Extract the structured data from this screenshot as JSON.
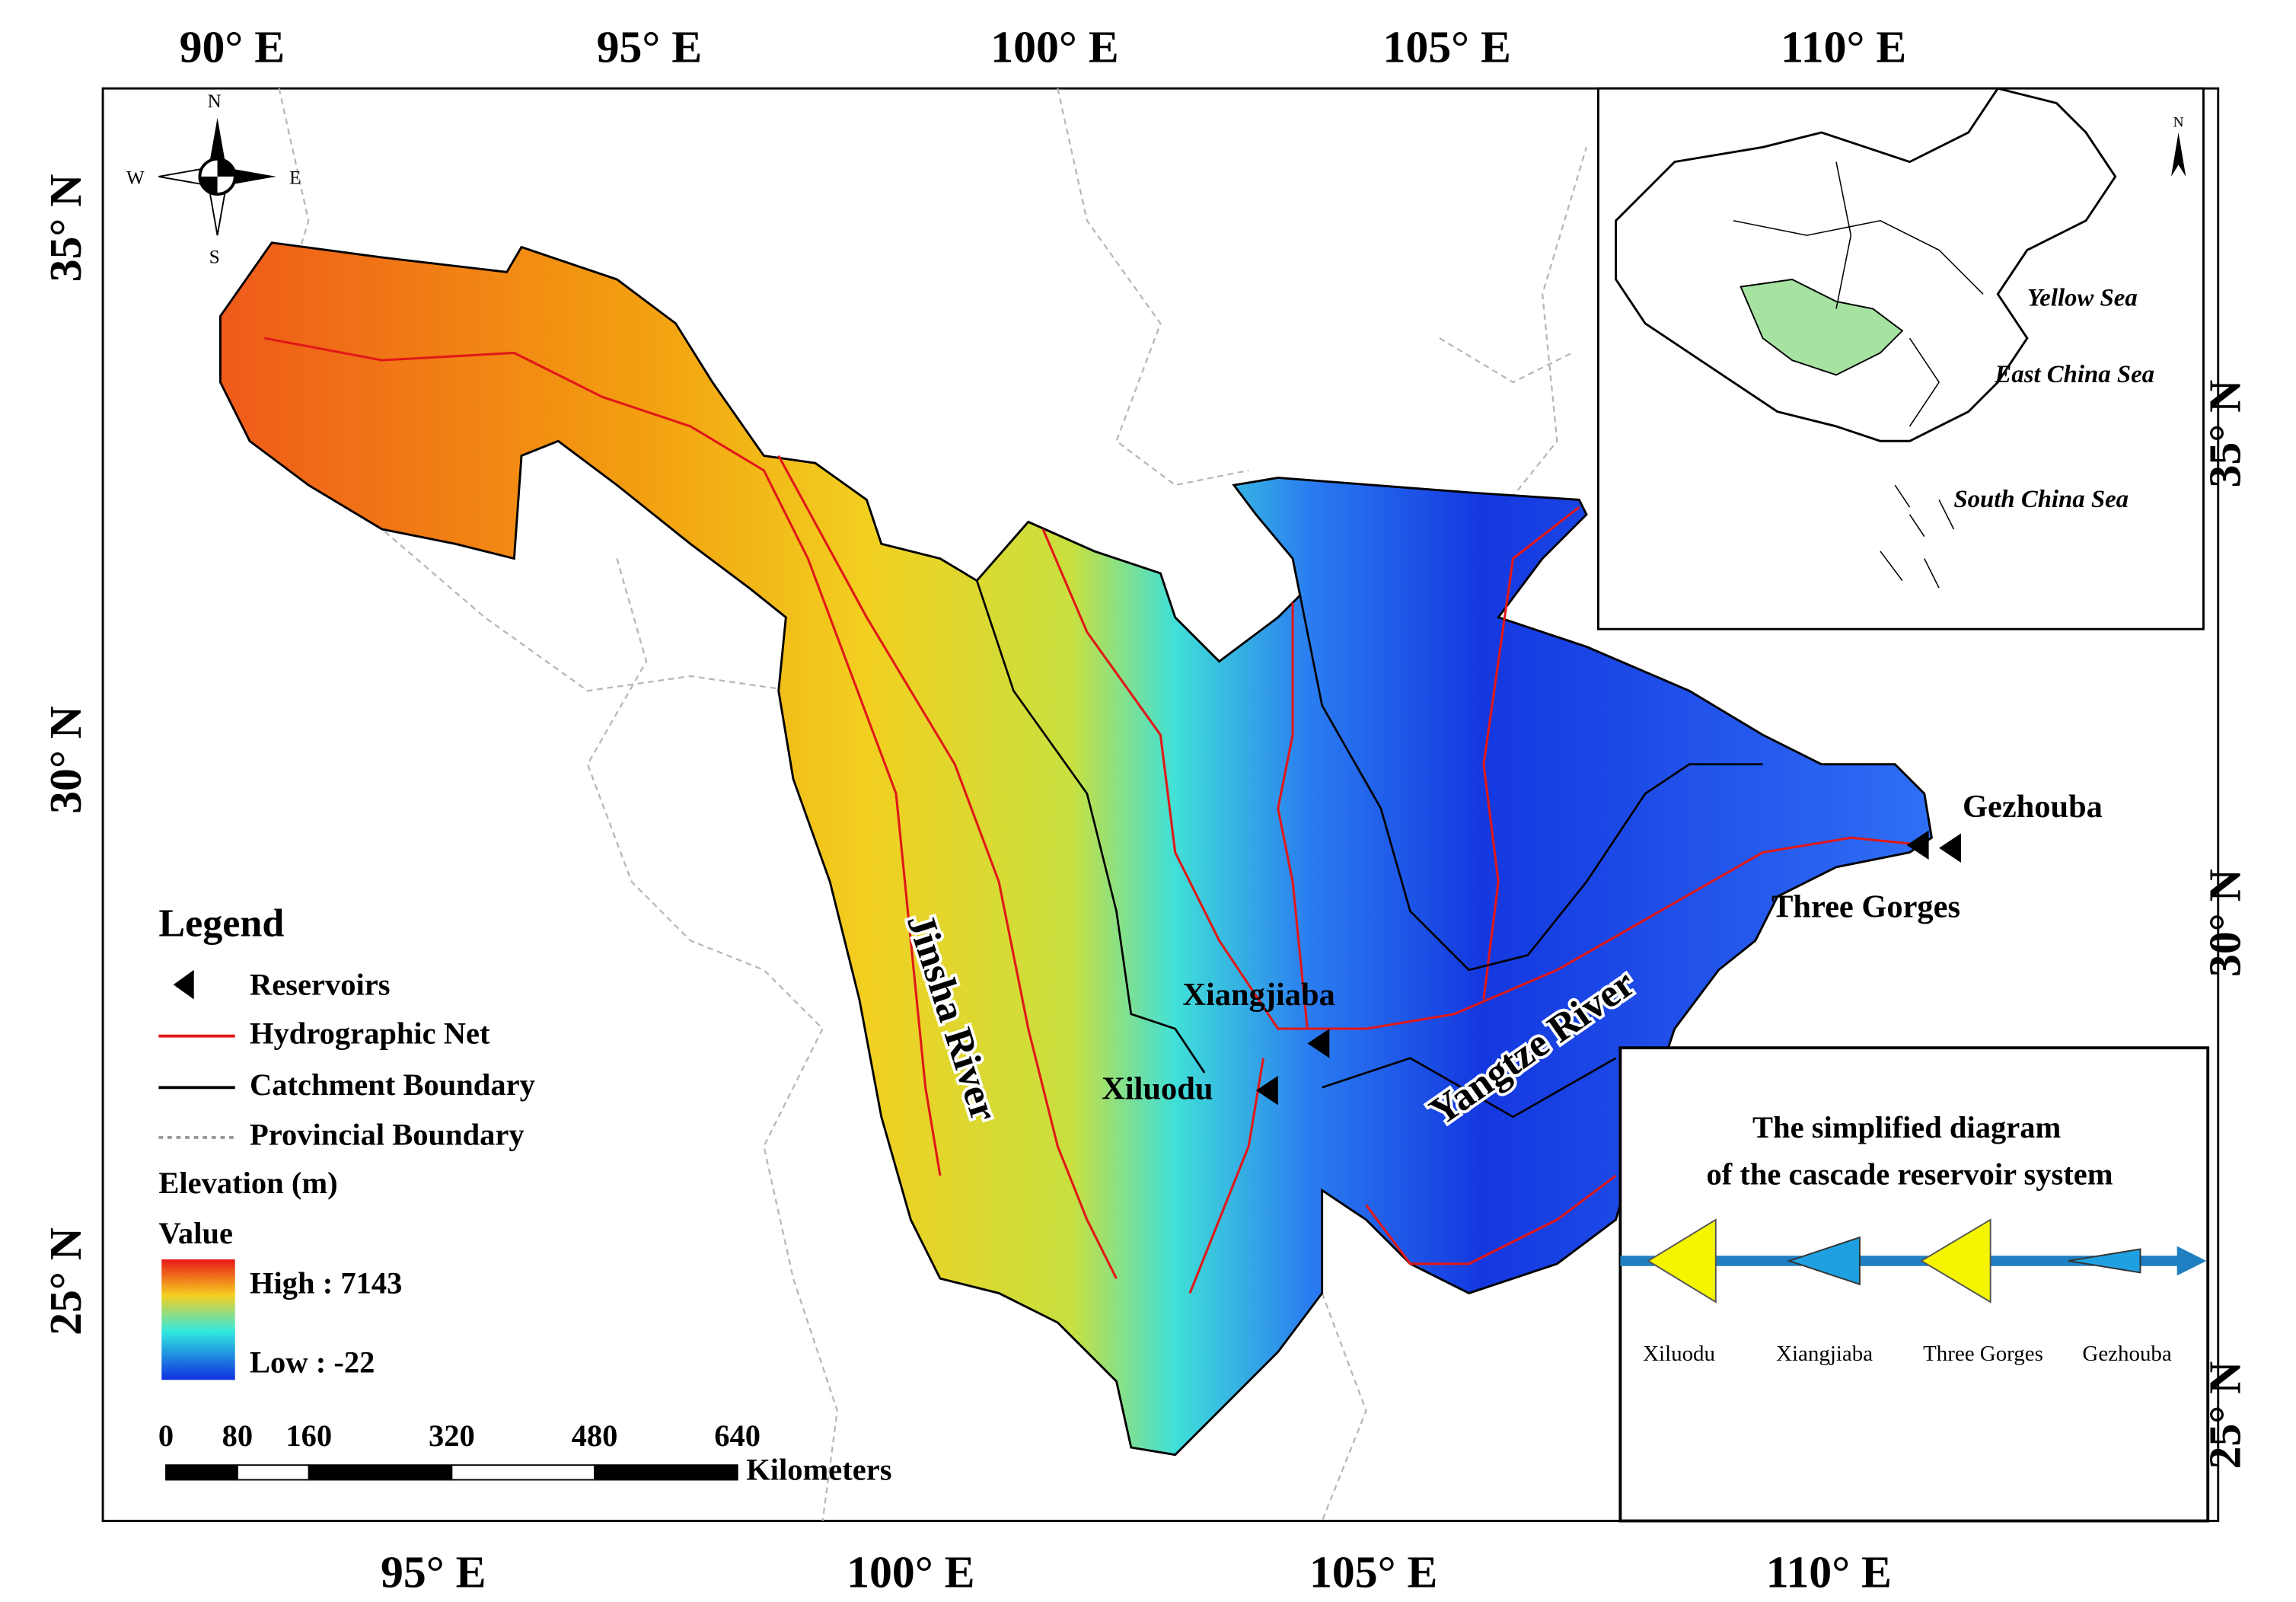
{
  "axes": {
    "top": [
      "90° E",
      "95° E",
      "100° E",
      "105° E",
      "110° E"
    ],
    "bottom": [
      "95° E",
      "100° E",
      "105° E",
      "110° E"
    ],
    "left": [
      "35° N",
      "30° N",
      "25° N"
    ],
    "right": [
      "35° N",
      "30° N",
      "25° N"
    ]
  },
  "compass": {
    "north": "N",
    "east": "E",
    "south": "S",
    "west": "W"
  },
  "legend": {
    "title": "Legend",
    "items": [
      "Reservoirs",
      "Hydrographic Net",
      "Catchment Boundary",
      "Provincial Boundary"
    ],
    "elevation_title": "Elevation (m)",
    "value_title": "Value",
    "high": "High : 7143",
    "low": "Low : -22"
  },
  "scale_bar": {
    "ticks": [
      0,
      80,
      160,
      320,
      480,
      640
    ],
    "unit": "Kilometers"
  },
  "map_labels": {
    "jinsha": "Jinsha River",
    "yangtze": "Yangtze River",
    "xiangjiaba": "Xiangjiaba",
    "xiluodu": "Xiluodu",
    "gezhouba": "Gezhouba",
    "three_gorges": "Three Gorges"
  },
  "inset": {
    "north": "N",
    "seas": [
      "Yellow Sea",
      "East China Sea",
      "South China Sea"
    ]
  },
  "diagram": {
    "title_lines": [
      "The simplified diagram",
      "of the cascade reservoir system"
    ],
    "stations": [
      "Xiluodu",
      "Xiangjiaba",
      "Three Gorges",
      "Gezhouba"
    ]
  }
}
